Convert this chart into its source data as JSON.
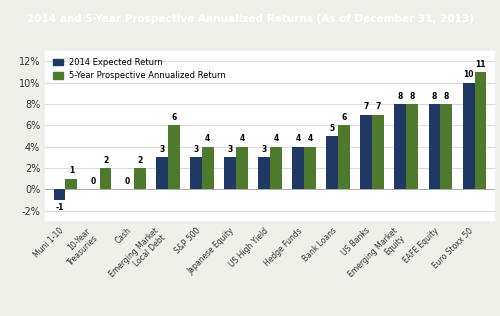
{
  "title": "2014 and 5-Year Prospective Annualized Returns (As of December 31, 2013)",
  "title_bg_color": "#1F3864",
  "title_text_color": "#FFFFFF",
  "categories": [
    "Muni 1-10",
    "10-Year\nTreasuries",
    "Cash",
    "Emerging Market\nLocal Debt",
    "S&P 500",
    "Japanese Equity",
    "US High Yield",
    "Hedge Funds",
    "Bank Loans",
    "US Banks",
    "Emerging Market\nEquity",
    "EAFE Equity",
    "Euro Stoxx 50"
  ],
  "series1_label": "2014 Expected Return",
  "series2_label": "5-Year Prospective Annualized Return",
  "series1_values": [
    -1,
    0,
    0,
    3,
    3,
    3,
    3,
    4,
    5,
    7,
    8,
    8,
    10
  ],
  "series2_values": [
    1,
    2,
    2,
    6,
    4,
    4,
    4,
    4,
    6,
    7,
    8,
    8,
    11
  ],
  "series1_color": "#1F3864",
  "series2_color": "#4E7A2D",
  "bar_width": 0.35,
  "ylim": [
    -0.03,
    0.13
  ],
  "yticks": [
    -0.02,
    0.0,
    0.02,
    0.04,
    0.06,
    0.08,
    0.1,
    0.12
  ],
  "ytick_labels": [
    "-2%",
    "0%",
    "2%",
    "4%",
    "6%",
    "8%",
    "10%",
    "12%"
  ],
  "bg_color": "#F0F0EB",
  "plot_bg_color": "#FFFFFF",
  "grid_color": "#CCCCCC",
  "legend_loc": "upper left"
}
